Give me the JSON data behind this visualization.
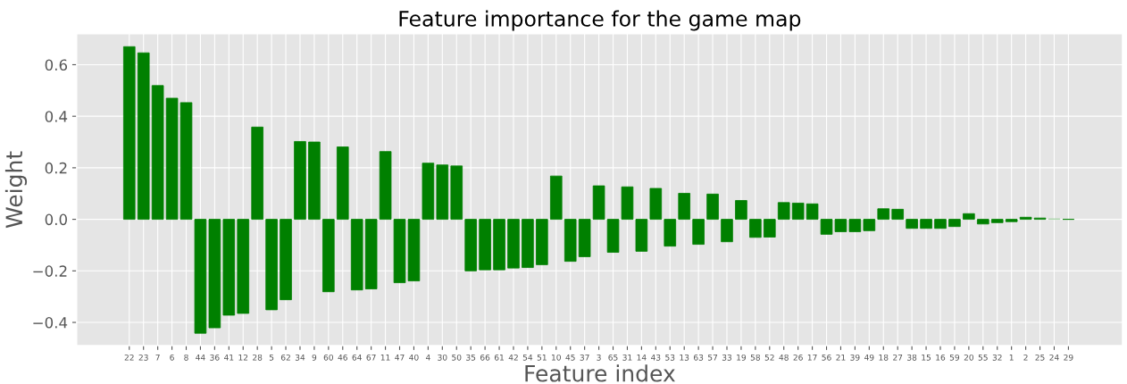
{
  "chart_data": {
    "type": "bar",
    "title": "Feature importance for the game map",
    "xlabel": "Feature index",
    "ylabel": "Weight",
    "categories": [
      "22",
      "23",
      "7",
      "6",
      "8",
      "44",
      "36",
      "41",
      "12",
      "28",
      "5",
      "62",
      "34",
      "9",
      "60",
      "46",
      "64",
      "67",
      "11",
      "47",
      "40",
      "4",
      "30",
      "50",
      "35",
      "66",
      "61",
      "42",
      "54",
      "51",
      "10",
      "45",
      "37",
      "3",
      "65",
      "31",
      "14",
      "43",
      "53",
      "13",
      "63",
      "57",
      "33",
      "19",
      "58",
      "52",
      "48",
      "26",
      "17",
      "56",
      "21",
      "39",
      "49",
      "18",
      "27",
      "38",
      "15",
      "16",
      "59",
      "20",
      "55",
      "32",
      "1",
      "2",
      "25",
      "24",
      "29"
    ],
    "values": [
      0.67,
      0.646,
      0.519,
      0.47,
      0.453,
      -0.442,
      -0.421,
      -0.372,
      -0.365,
      0.358,
      -0.351,
      -0.312,
      0.302,
      0.3,
      -0.281,
      0.281,
      -0.274,
      -0.27,
      0.263,
      -0.246,
      -0.239,
      0.218,
      0.211,
      0.207,
      -0.2,
      -0.196,
      -0.196,
      -0.189,
      -0.187,
      -0.176,
      0.168,
      -0.163,
      -0.145,
      0.13,
      -0.128,
      0.126,
      -0.124,
      0.12,
      -0.104,
      0.101,
      -0.097,
      0.098,
      -0.087,
      0.073,
      -0.07,
      -0.069,
      0.065,
      0.063,
      0.06,
      -0.058,
      -0.048,
      -0.048,
      -0.044,
      0.041,
      0.039,
      -0.035,
      -0.035,
      -0.035,
      -0.028,
      0.022,
      -0.018,
      -0.013,
      -0.009,
      0.008,
      0.005,
      0.002,
      0
    ],
    "colors": [
      "#008000",
      "#008000",
      "#008000",
      "#008000",
      "#008000",
      "#008000",
      "#008000",
      "#008000",
      "#008000",
      "#008000",
      "#008000",
      "#008000",
      "#008000",
      "#008000",
      "#008000",
      "#008000",
      "#008000",
      "#008000",
      "#008000",
      "#008000",
      "#008000",
      "#008000",
      "#008000",
      "#008000",
      "#008000",
      "#008000",
      "#008000",
      "#008000",
      "#008000",
      "#008000",
      "#008000",
      "#008000",
      "#008000",
      "#008000",
      "#008000",
      "#008000",
      "#008000",
      "#008000",
      "#008000",
      "#008000",
      "#008000",
      "#008000",
      "#008000",
      "#008000",
      "#008000",
      "#008000",
      "#008000",
      "#008000",
      "#008000",
      "#008000",
      "#008000",
      "#008000",
      "#008000",
      "#008000",
      "#008000",
      "#008000",
      "#008000",
      "#008000",
      "#008000",
      "#008000",
      "#008000",
      "#008000",
      "#008000",
      "#008000",
      "#008000",
      "#a8d5a8",
      "#008000"
    ],
    "ylim": [
      -0.49,
      0.72
    ],
    "yticks": [
      {
        "value": -0.4,
        "label": "−0.4"
      },
      {
        "value": -0.2,
        "label": "−0.2"
      },
      {
        "value": 0.0,
        "label": "0.0"
      },
      {
        "value": 0.2,
        "label": "0.2"
      },
      {
        "value": 0.4,
        "label": "0.4"
      },
      {
        "value": 0.6,
        "label": "0.6"
      }
    ],
    "grid": true
  }
}
